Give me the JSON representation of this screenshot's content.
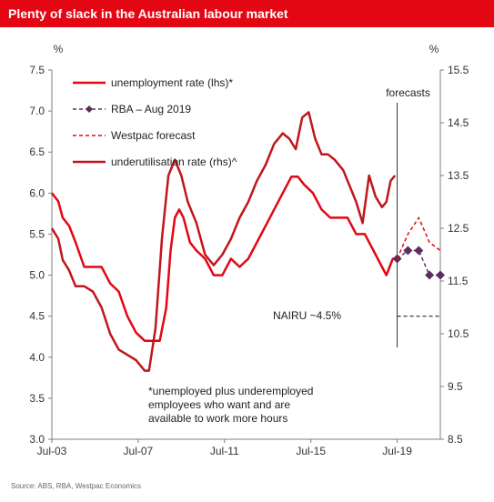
{
  "header": {
    "title": "Plenty of slack in the Australian labour market"
  },
  "footer": {
    "source": "Source: ABS, RBA, Westpac Economics"
  },
  "chart_data": {
    "type": "line",
    "y_left": {
      "unit": "%",
      "min": 3.0,
      "max": 7.5,
      "ticks": [
        "7.5",
        "7.0",
        "6.5",
        "6.0",
        "5.5",
        "5.0",
        "4.5",
        "4.0",
        "3.5",
        "3.0"
      ]
    },
    "y_right": {
      "unit": "%",
      "min": 8.5,
      "max": 15.5,
      "ticks": [
        "15.5",
        "14.5",
        "13.5",
        "12.5",
        "11.5",
        "10.5",
        "9.5",
        "8.5"
      ]
    },
    "x_axis": {
      "min": 2003.5,
      "max": 2021.5,
      "ticks": [
        {
          "label": "Jul-03",
          "value": 2003.5
        },
        {
          "label": "Jul-07",
          "value": 2007.5
        },
        {
          "label": "Jul-11",
          "value": 2011.5
        },
        {
          "label": "Jul-15",
          "value": 2015.5
        },
        {
          "label": "Jul-19",
          "value": 2019.5
        }
      ]
    },
    "legend": {
      "placement": "top-left",
      "entries": [
        "unemployment rate (lhs)*",
        "RBA – Aug 2019",
        "Westpac forecast",
        "underutilisation rate (rhs)^"
      ]
    },
    "colors": {
      "unemployment": "#e30613",
      "rba": "#5a2d5e",
      "westpac": "#e30613",
      "underutilisation": "#c0161b"
    },
    "annotations": {
      "forecasts": "forecasts",
      "nairu": "NAIRU ~4.5%",
      "nairu_value": 4.5,
      "forecast_start": 2019.5,
      "footnote": [
        "*unemployed plus underemployed",
        "employees who want and are",
        "available to work more hours"
      ]
    },
    "series": [
      {
        "name": "unemployment rate (lhs)*",
        "axis": "left",
        "style": "solid",
        "x": [
          2003.5,
          2003.8,
          2004.0,
          2004.3,
          2004.6,
          2005.0,
          2005.4,
          2005.8,
          2006.2,
          2006.6,
          2007.0,
          2007.4,
          2007.8,
          2008.2,
          2008.5,
          2008.8,
          2009.0,
          2009.2,
          2009.4,
          2009.6,
          2009.9,
          2010.2,
          2010.6,
          2011.0,
          2011.4,
          2011.8,
          2012.2,
          2012.6,
          2013.0,
          2013.4,
          2013.8,
          2014.2,
          2014.6,
          2014.9,
          2015.2,
          2015.6,
          2016.0,
          2016.4,
          2016.8,
          2017.2,
          2017.6,
          2018.0,
          2018.4,
          2018.8,
          2019.0,
          2019.3,
          2019.6
        ],
        "y": [
          6.0,
          5.9,
          5.7,
          5.6,
          5.4,
          5.1,
          5.1,
          5.1,
          4.9,
          4.8,
          4.5,
          4.3,
          4.2,
          4.2,
          4.2,
          4.6,
          5.3,
          5.7,
          5.8,
          5.7,
          5.4,
          5.3,
          5.2,
          5.0,
          5.0,
          5.2,
          5.1,
          5.2,
          5.4,
          5.6,
          5.8,
          6.0,
          6.2,
          6.2,
          6.1,
          6.0,
          5.8,
          5.7,
          5.7,
          5.7,
          5.5,
          5.5,
          5.3,
          5.1,
          5.0,
          5.2,
          5.2
        ]
      },
      {
        "name": "underutilisation rate (rhs)^",
        "axis": "right",
        "style": "solid",
        "x": [
          2003.5,
          2003.8,
          2004.0,
          2004.3,
          2004.6,
          2005.0,
          2005.4,
          2005.8,
          2006.2,
          2006.6,
          2007.0,
          2007.4,
          2007.8,
          2008.0,
          2008.3,
          2008.6,
          2008.9,
          2009.2,
          2009.5,
          2009.8,
          2010.2,
          2010.6,
          2011.0,
          2011.4,
          2011.8,
          2012.2,
          2012.6,
          2013.0,
          2013.4,
          2013.8,
          2014.2,
          2014.5,
          2014.8,
          2015.1,
          2015.4,
          2015.7,
          2016.0,
          2016.3,
          2016.6,
          2017.0,
          2017.3,
          2017.6,
          2017.9,
          2018.2,
          2018.5,
          2018.8,
          2019.0,
          2019.2,
          2019.4
        ],
        "y": [
          12.5,
          12.3,
          11.9,
          11.7,
          11.4,
          11.4,
          11.3,
          11.0,
          10.5,
          10.2,
          10.1,
          10.0,
          9.8,
          9.8,
          10.6,
          12.3,
          13.5,
          13.8,
          13.5,
          13.0,
          12.6,
          12.0,
          11.8,
          12.0,
          12.3,
          12.7,
          13.0,
          13.4,
          13.7,
          14.1,
          14.3,
          14.2,
          14.0,
          14.6,
          14.7,
          14.2,
          13.9,
          13.9,
          13.8,
          13.6,
          13.3,
          13.0,
          12.6,
          13.5,
          13.1,
          12.9,
          13.0,
          13.4,
          13.5
        ]
      },
      {
        "name": "RBA – Aug 2019",
        "axis": "left",
        "style": "dashed-markers",
        "x": [
          2019.5,
          2020.0,
          2020.5,
          2021.0,
          2021.5
        ],
        "y": [
          5.2,
          5.3,
          5.3,
          5.0,
          5.0
        ]
      },
      {
        "name": "Westpac forecast",
        "axis": "left",
        "style": "dashed",
        "x": [
          2019.5,
          2020.0,
          2020.5,
          2021.0,
          2021.5
        ],
        "y": [
          5.2,
          5.5,
          5.7,
          5.4,
          5.3
        ]
      }
    ]
  }
}
